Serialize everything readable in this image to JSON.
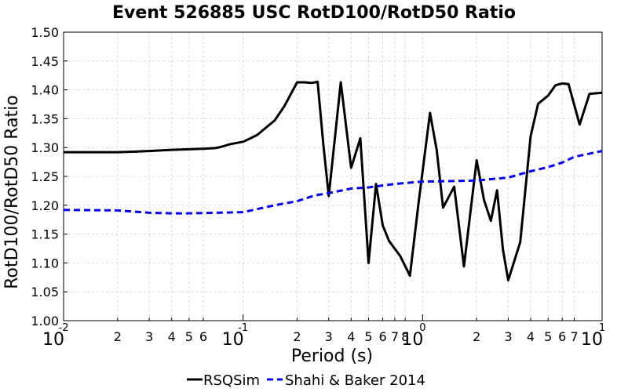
{
  "chart_data": {
    "type": "line",
    "title": "Event 526885 USC RotD100/RotD50 Ratio",
    "xlabel": "Period (s)",
    "ylabel": "RotD100/RotD50 Ratio",
    "xscale": "log",
    "xlim": [
      0.01,
      10
    ],
    "ylim": [
      1.0,
      1.5
    ],
    "grid": true,
    "legend_position": "bottom",
    "y_ticks": [
      "1.00",
      "1.05",
      "1.10",
      "1.15",
      "1.20",
      "1.25",
      "1.30",
      "1.35",
      "1.40",
      "1.45",
      "1.50"
    ],
    "x_major_ticks": [
      {
        "value": 0.01,
        "base": "10",
        "exp": "-2"
      },
      {
        "value": 0.1,
        "base": "10",
        "exp": "-1"
      },
      {
        "value": 1,
        "base": "10",
        "exp": "0"
      },
      {
        "value": 10,
        "base": "10",
        "exp": "1"
      }
    ],
    "x_minor_ticks": [
      {
        "value": 0.02,
        "label": "2"
      },
      {
        "value": 0.03,
        "label": "3"
      },
      {
        "value": 0.04,
        "label": "4"
      },
      {
        "value": 0.05,
        "label": "5"
      },
      {
        "value": 0.06,
        "label": "6"
      },
      {
        "value": 0.2,
        "label": "2"
      },
      {
        "value": 0.3,
        "label": "3"
      },
      {
        "value": 0.4,
        "label": "4"
      },
      {
        "value": 0.5,
        "label": "5"
      },
      {
        "value": 0.6,
        "label": "6"
      },
      {
        "value": 0.7,
        "label": "7"
      },
      {
        "value": 0.8,
        "label": "8"
      },
      {
        "value": 2,
        "label": "2"
      },
      {
        "value": 3,
        "label": "3"
      },
      {
        "value": 4,
        "label": "4"
      },
      {
        "value": 5,
        "label": "5"
      },
      {
        "value": 6,
        "label": "6"
      },
      {
        "value": 7,
        "label": "7"
      }
    ],
    "series": [
      {
        "name": "RSQSim",
        "color": "#000000",
        "dash": "solid",
        "points": [
          [
            0.01,
            1.292
          ],
          [
            0.015,
            1.292
          ],
          [
            0.02,
            1.292
          ],
          [
            0.025,
            1.293
          ],
          [
            0.03,
            1.294
          ],
          [
            0.04,
            1.296
          ],
          [
            0.05,
            1.297
          ],
          [
            0.06,
            1.298
          ],
          [
            0.07,
            1.299
          ],
          [
            0.075,
            1.301
          ],
          [
            0.085,
            1.306
          ],
          [
            0.1,
            1.31
          ],
          [
            0.11,
            1.316
          ],
          [
            0.12,
            1.322
          ],
          [
            0.13,
            1.331
          ],
          [
            0.15,
            1.347
          ],
          [
            0.17,
            1.372
          ],
          [
            0.2,
            1.413
          ],
          [
            0.22,
            1.413
          ],
          [
            0.24,
            1.412
          ],
          [
            0.26,
            1.414
          ],
          [
            0.28,
            1.305
          ],
          [
            0.3,
            1.216
          ],
          [
            0.35,
            1.413
          ],
          [
            0.4,
            1.265
          ],
          [
            0.45,
            1.316
          ],
          [
            0.5,
            1.1
          ],
          [
            0.55,
            1.237
          ],
          [
            0.6,
            1.165
          ],
          [
            0.65,
            1.138
          ],
          [
            0.75,
            1.112
          ],
          [
            0.85,
            1.078
          ],
          [
            0.95,
            1.204
          ],
          [
            1.1,
            1.36
          ],
          [
            1.2,
            1.295
          ],
          [
            1.3,
            1.196
          ],
          [
            1.5,
            1.232
          ],
          [
            1.7,
            1.094
          ],
          [
            2.0,
            1.278
          ],
          [
            2.2,
            1.209
          ],
          [
            2.4,
            1.173
          ],
          [
            2.6,
            1.226
          ],
          [
            2.8,
            1.124
          ],
          [
            3.0,
            1.07
          ],
          [
            3.5,
            1.136
          ],
          [
            4.0,
            1.32
          ],
          [
            4.4,
            1.376
          ],
          [
            5.0,
            1.39
          ],
          [
            5.5,
            1.408
          ],
          [
            6.0,
            1.411
          ],
          [
            6.5,
            1.41
          ],
          [
            7.5,
            1.34
          ],
          [
            8.5,
            1.393
          ],
          [
            10,
            1.395
          ]
        ]
      },
      {
        "name": "Shahi & Baker 2014",
        "color": "#0000ff",
        "dash": "dashed",
        "points": [
          [
            0.01,
            1.192
          ],
          [
            0.02,
            1.191
          ],
          [
            0.03,
            1.187
          ],
          [
            0.04,
            1.186
          ],
          [
            0.05,
            1.186
          ],
          [
            0.07,
            1.187
          ],
          [
            0.1,
            1.188
          ],
          [
            0.15,
            1.2
          ],
          [
            0.2,
            1.207
          ],
          [
            0.25,
            1.217
          ],
          [
            0.3,
            1.221
          ],
          [
            0.4,
            1.229
          ],
          [
            0.5,
            1.231
          ],
          [
            0.7,
            1.237
          ],
          [
            1.0,
            1.241
          ],
          [
            1.5,
            1.242
          ],
          [
            2.0,
            1.243
          ],
          [
            3.0,
            1.248
          ],
          [
            4.0,
            1.259
          ],
          [
            5.0,
            1.266
          ],
          [
            6.0,
            1.274
          ],
          [
            7.0,
            1.284
          ],
          [
            10,
            1.294
          ]
        ]
      }
    ]
  }
}
